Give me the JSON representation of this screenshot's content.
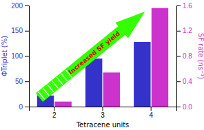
{
  "chart_data": {
    "type": "bar",
    "categories": [
      "2",
      "3",
      "4"
    ],
    "xlabel": "Tetracene units",
    "ylabel": "ΦTriplet (%)",
    "y2label": "SF rate (ns⁻¹)",
    "series": [
      {
        "color": "#3333cc",
        "values": [
          22,
          95,
          128
        ]
      },
      {
        "color": "#cc33cc",
        "values": [
          0.08,
          0.54,
          1.56
        ],
        "axis": "y2"
      }
    ],
    "ylim": [
      0,
      200
    ],
    "yticks": [
      0,
      50,
      100,
      150,
      200
    ],
    "y2lim": [
      0,
      1.6
    ],
    "y2ticks": [
      {
        "value": 0,
        "label": "0.0"
      },
      0.4,
      0.8,
      1.2,
      1.6
    ],
    "annotations": [
      {
        "text": "Increased SF yield",
        "color": "#dd0000",
        "arrow": {
          "color": "#33ff00"
        }
      }
    ],
    "grid": false
  }
}
